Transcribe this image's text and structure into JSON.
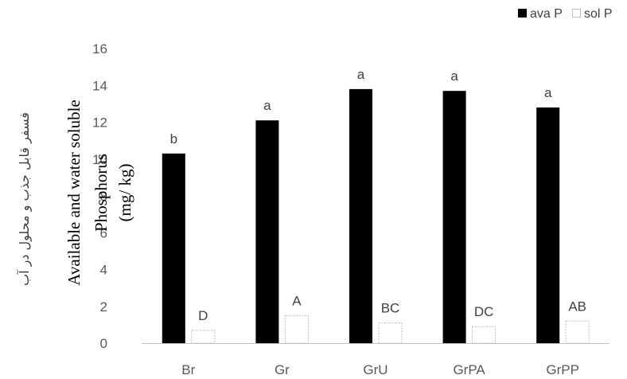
{
  "chart_data": {
    "type": "bar",
    "categories": [
      "Br",
      "Gr",
      "GrU",
      "GrPA",
      "GrPP"
    ],
    "series": [
      {
        "name": "ava P",
        "values": [
          10.3,
          12.1,
          13.8,
          13.7,
          12.8
        ],
        "labels": [
          "b",
          "a",
          "a",
          "a",
          "a"
        ],
        "color": "#000000"
      },
      {
        "name": "sol P",
        "values": [
          0.7,
          1.5,
          1.1,
          0.9,
          1.2
        ],
        "labels": [
          "D",
          "A",
          "BC",
          "DC",
          "AB"
        ],
        "color": "#ffffff"
      }
    ],
    "ylabel_fa": "فسفر قابل جذب و محلول در آب",
    "ylabel": [
      "Available and water soluble",
      "Phosphorus",
      "(mg/ kg)"
    ],
    "ylim": [
      0,
      16
    ],
    "yticks": [
      "0",
      "2",
      "4",
      "6",
      "8",
      "10",
      "12",
      "14",
      "16"
    ],
    "grid": false,
    "legend_position": "top-right"
  }
}
